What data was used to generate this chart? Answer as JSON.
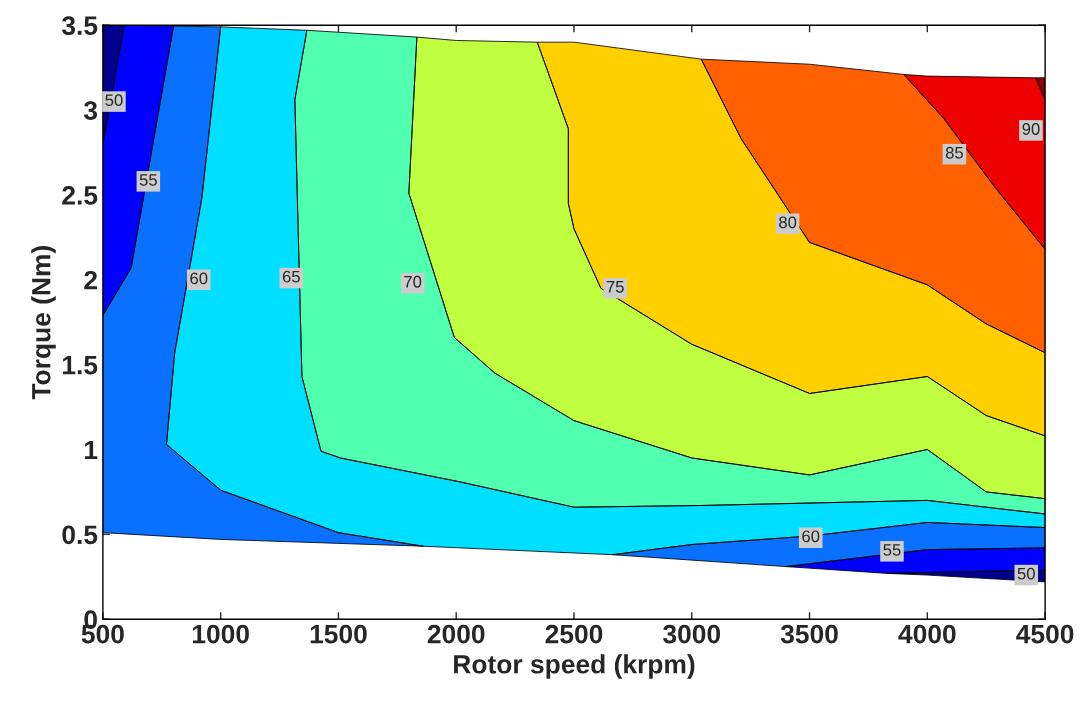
{
  "chart_data": {
    "type": "area",
    "xlabel": "Rotor speed (krpm)",
    "ylabel": "Torque (Nm)",
    "xlim": [
      500,
      4500
    ],
    "ylim": [
      0,
      3.5
    ],
    "xticks": [
      500,
      1000,
      1500,
      2000,
      2500,
      3000,
      3500,
      4000,
      4500
    ],
    "yticks": [
      0,
      0.5,
      1,
      1.5,
      2,
      2.5,
      3,
      3.5
    ],
    "series": [
      {
        "color": "#00008f",
        "x": [
          500,
          590,
          500
        ],
        "values": [
          3.5,
          3.5,
          2.8
        ]
      },
      {
        "color": "#00008f",
        "x": [
          3830,
          4500,
          4500,
          4000
        ],
        "values": [
          0.27,
          0.29,
          0.22,
          0.26
        ]
      },
      {
        "color": "#0000ff",
        "x": [
          590,
          800,
          620,
          500,
          500
        ],
        "values": [
          3.5,
          3.495,
          2.07,
          1.79,
          2.8
        ]
      },
      {
        "color": "#0000ff",
        "x": [
          3400,
          4000,
          4500,
          4500,
          3830
        ],
        "values": [
          0.31,
          0.41,
          0.42,
          0.29,
          0.27
        ]
      },
      {
        "color": "#0a70ff",
        "x": [
          800,
          1000,
          920,
          805,
          770,
          1000,
          1500,
          1860,
          1000,
          500,
          500,
          620
        ],
        "values": [
          3.495,
          3.49,
          2.48,
          1.57,
          1.03,
          0.76,
          0.51,
          0.43,
          0.47,
          0.51,
          1.79,
          2.07
        ]
      },
      {
        "color": "#0a70ff",
        "x": [
          2665,
          3000,
          3500,
          4000,
          4500,
          4500,
          4000,
          3400
        ],
        "values": [
          0.38,
          0.44,
          0.49,
          0.57,
          0.54,
          0.42,
          0.41,
          0.31
        ]
      },
      {
        "color": "#00dfff",
        "x": [
          1000,
          1366,
          1315,
          1345,
          1426,
          1508,
          2013,
          2500,
          3040,
          4000,
          4500,
          4500,
          4000,
          3500,
          3000,
          2665,
          1860,
          1500,
          1000,
          770,
          805,
          920
        ],
        "values": [
          3.49,
          3.47,
          3.06,
          1.43,
          0.99,
          0.95,
          0.81,
          0.66,
          0.67,
          0.7,
          0.62,
          0.54,
          0.57,
          0.49,
          0.44,
          0.38,
          0.43,
          0.51,
          0.76,
          1.03,
          1.57,
          2.48
        ]
      },
      {
        "color": "#50ffaf",
        "x": [
          1366,
          1833,
          1799,
          1992,
          2164,
          2500,
          3000,
          3500,
          4000,
          4250,
          4500,
          4500,
          4000,
          3040,
          2500,
          2013,
          1508,
          1426,
          1345,
          1315
        ],
        "values": [
          3.47,
          3.43,
          2.51,
          1.66,
          1.45,
          1.17,
          0.95,
          0.85,
          1.0,
          0.75,
          0.71,
          0.62,
          0.7,
          0.67,
          0.66,
          0.81,
          0.95,
          0.99,
          1.43,
          3.06
        ]
      },
      {
        "color": "#bfff40",
        "x": [
          1833,
          2000,
          2344,
          2476,
          2476,
          2500,
          2614,
          3000,
          3500,
          4000,
          4250,
          4500,
          4500,
          4250,
          4000,
          3500,
          3000,
          2500,
          2164,
          1992,
          1799
        ],
        "values": [
          3.43,
          3.41,
          3.4,
          2.89,
          2.45,
          2.3,
          1.95,
          1.62,
          1.33,
          1.43,
          1.2,
          1.08,
          0.71,
          0.75,
          1.0,
          0.85,
          0.95,
          1.17,
          1.45,
          1.66,
          2.51
        ]
      },
      {
        "color": "#ffcf00",
        "x": [
          2344,
          2500,
          3040,
          3210,
          3500,
          4000,
          4250,
          4500,
          4500,
          4250,
          4000,
          3500,
          3000,
          2614,
          2500,
          2476,
          2476
        ],
        "values": [
          3.4,
          3.4,
          3.3,
          2.83,
          2.22,
          1.97,
          1.74,
          1.57,
          1.08,
          1.2,
          1.43,
          1.33,
          1.62,
          1.95,
          2.3,
          2.45,
          2.89
        ]
      },
      {
        "color": "#ff6000",
        "x": [
          3040,
          3500,
          3900,
          4070,
          4290,
          4500,
          4500,
          4250,
          4000,
          3500,
          3210
        ],
        "values": [
          3.3,
          3.27,
          3.21,
          2.95,
          2.54,
          2.18,
          1.57,
          1.74,
          1.97,
          2.22,
          2.83
        ]
      },
      {
        "color": "#ef0000",
        "x": [
          3900,
          4000,
          4460,
          4500,
          4500,
          4290,
          4070
        ],
        "values": [
          3.21,
          3.2,
          3.19,
          3.06,
          2.18,
          2.54,
          2.95
        ]
      },
      {
        "color": "#8f0000",
        "x": [
          4460,
          4500,
          4500
        ],
        "values": [
          3.19,
          3.19,
          3.06
        ]
      }
    ],
    "annotations": [
      {
        "text": "50",
        "x": 547,
        "y": 3.05
      },
      {
        "text": "55",
        "x": 693,
        "y": 2.58
      },
      {
        "text": "60",
        "x": 907,
        "y": 2.0
      },
      {
        "text": "65",
        "x": 1300,
        "y": 2.01
      },
      {
        "text": "70",
        "x": 1815,
        "y": 1.98
      },
      {
        "text": "75",
        "x": 2675,
        "y": 1.95
      },
      {
        "text": "80",
        "x": 3407,
        "y": 2.33
      },
      {
        "text": "85",
        "x": 4115,
        "y": 2.74
      },
      {
        "text": "90",
        "x": 4440,
        "y": 2.88
      },
      {
        "text": "60",
        "x": 3505,
        "y": 0.48
      },
      {
        "text": "55",
        "x": 3850,
        "y": 0.4
      },
      {
        "text": "50",
        "x": 4420,
        "y": 0.26
      }
    ]
  }
}
